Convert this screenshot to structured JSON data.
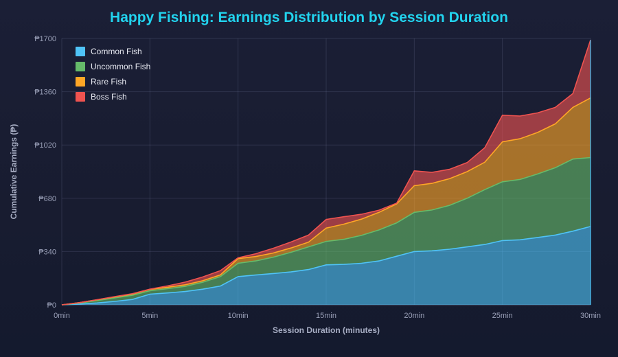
{
  "chart_data": {
    "type": "area",
    "stacked": true,
    "title": "Happy Fishing: Earnings Distribution by Session Duration",
    "xlabel": "Session Duration (minutes)",
    "ylabel": "Cumulative Earnings (₱)",
    "x": [
      0,
      1,
      2,
      3,
      4,
      5,
      6,
      7,
      8,
      9,
      10,
      11,
      12,
      13,
      14,
      15,
      16,
      17,
      18,
      19,
      20,
      21,
      22,
      23,
      24,
      25,
      26,
      27,
      28,
      29,
      30
    ],
    "x_tick_labels": [
      "0min",
      "5min",
      "10min",
      "15min",
      "20min",
      "25min",
      "30min"
    ],
    "x_tick_values": [
      0,
      5,
      10,
      15,
      20,
      25,
      30
    ],
    "xlim": [
      0,
      30
    ],
    "y_tick_labels": [
      "₱0",
      "₱340",
      "₱680",
      "₱1020",
      "₱1360",
      "₱1700"
    ],
    "y_tick_values": [
      0,
      340,
      680,
      1020,
      1360,
      1700
    ],
    "ylim": [
      0,
      1700
    ],
    "grid": true,
    "legend_position": "top-left",
    "series": [
      {
        "name": "Common Fish",
        "color": "#4fc3f7",
        "values": [
          0,
          5,
          12,
          22,
          34,
          68,
          76,
          85,
          100,
          120,
          180,
          190,
          200,
          210,
          225,
          255,
          258,
          265,
          280,
          310,
          340,
          345,
          355,
          370,
          385,
          410,
          415,
          430,
          445,
          470,
          500
        ]
      },
      {
        "name": "Uncommon Fish",
        "color": "#66bb6a",
        "values": [
          0,
          6,
          15,
          22,
          27,
          22,
          27,
          33,
          44,
          60,
          85,
          90,
          104,
          125,
          145,
          150,
          160,
          178,
          198,
          213,
          250,
          260,
          280,
          310,
          350,
          375,
          385,
          405,
          430,
          460,
          440
        ]
      },
      {
        "name": "Rare Fish",
        "color": "#ffa726",
        "values": [
          0,
          3,
          5,
          6,
          7,
          9,
          9,
          10,
          10,
          11,
          30,
          28,
          27,
          28,
          30,
          85,
          97,
          104,
          112,
          121,
          170,
          170,
          170,
          170,
          175,
          255,
          260,
          265,
          280,
          330,
          380
        ]
      },
      {
        "name": "Boss Fish",
        "color": "#ef5350",
        "values": [
          0,
          0,
          1,
          2,
          3,
          1,
          9,
          17,
          24,
          27,
          5,
          18,
          30,
          38,
          45,
          55,
          47,
          31,
          14,
          5,
          95,
          70,
          60,
          58,
          93,
          170,
          145,
          125,
          105,
          88,
          370
        ]
      }
    ]
  }
}
